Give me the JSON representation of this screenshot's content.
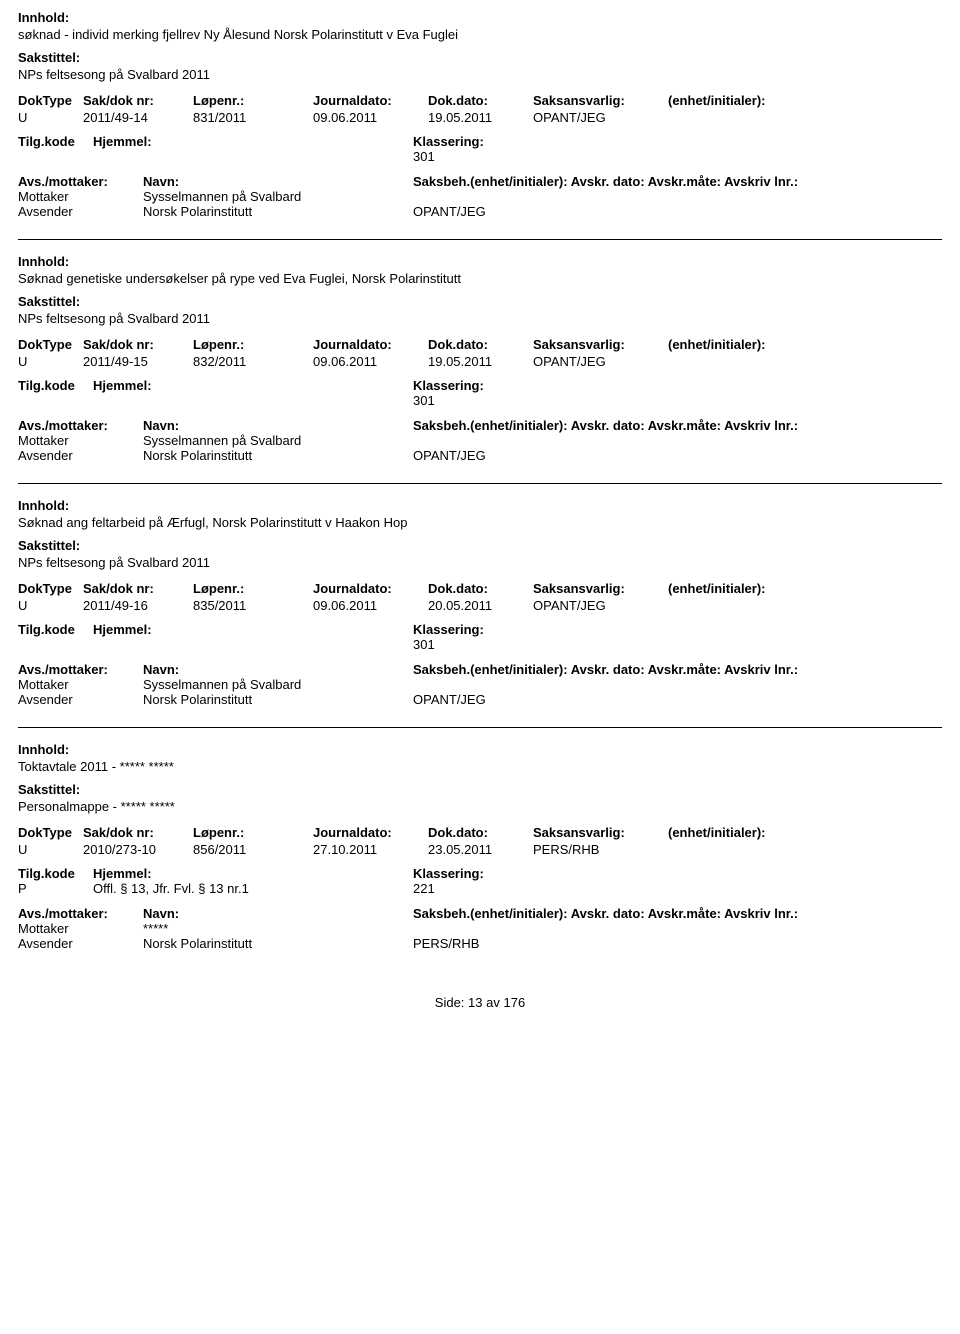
{
  "labels": {
    "innhold": "Innhold:",
    "sakstittel": "Sakstittel:",
    "doktype": "DokType",
    "sakdok": "Sak/dok nr:",
    "lopenr": "Løpenr.:",
    "journaldato": "Journaldato:",
    "dokdato": "Dok.dato:",
    "saksansvarlig": "Saksansvarlig:",
    "enhet": "(enhet/initialer):",
    "tilgkode": "Tilg.kode",
    "hjemmel": "Hjemmel:",
    "klassering": "Klassering:",
    "avsmottaker": "Avs./mottaker:",
    "navn": "Navn:",
    "saksbeh_line": "Saksbeh.(enhet/initialer): Avskr. dato:  Avskr.måte: Avskriv lnr.:"
  },
  "records": [
    {
      "innhold": "søknad - individ merking fjellrev Ny Ålesund Norsk Polarinstitutt v Eva Fuglei",
      "sakstittel": "NPs feltsesong på Svalbard  2011",
      "doktype": "U",
      "sakdok": "2011/49-14",
      "lopenr": "831/2011",
      "journaldato": "09.06.2011",
      "dokdato": "19.05.2011",
      "saksansvarlig": "OPANT/JEG",
      "tilgkode": "",
      "hjemmel": "",
      "klassering": "301",
      "parties": [
        {
          "role": "Mottaker",
          "navn": "Sysselmannen på Svalbard",
          "saksbeh": ""
        },
        {
          "role": "Avsender",
          "navn": "Norsk Polarinstitutt",
          "saksbeh": "OPANT/JEG"
        }
      ]
    },
    {
      "innhold": "Søknad genetiske undersøkelser på rype ved Eva Fuglei, Norsk Polarinstitutt",
      "sakstittel": "NPs feltsesong på Svalbard  2011",
      "doktype": "U",
      "sakdok": "2011/49-15",
      "lopenr": "832/2011",
      "journaldato": "09.06.2011",
      "dokdato": "19.05.2011",
      "saksansvarlig": "OPANT/JEG",
      "tilgkode": "",
      "hjemmel": "",
      "klassering": "301",
      "parties": [
        {
          "role": "Mottaker",
          "navn": "Sysselmannen på Svalbard",
          "saksbeh": ""
        },
        {
          "role": "Avsender",
          "navn": "Norsk Polarinstitutt",
          "saksbeh": "OPANT/JEG"
        }
      ]
    },
    {
      "innhold": "Søknad ang feltarbeid på Ærfugl, Norsk Polarinstitutt v Haakon Hop",
      "sakstittel": "NPs feltsesong på Svalbard  2011",
      "doktype": "U",
      "sakdok": "2011/49-16",
      "lopenr": "835/2011",
      "journaldato": "09.06.2011",
      "dokdato": "20.05.2011",
      "saksansvarlig": "OPANT/JEG",
      "tilgkode": "",
      "hjemmel": "",
      "klassering": "301",
      "parties": [
        {
          "role": "Mottaker",
          "navn": "Sysselmannen på Svalbard",
          "saksbeh": ""
        },
        {
          "role": "Avsender",
          "navn": "Norsk Polarinstitutt",
          "saksbeh": "OPANT/JEG"
        }
      ]
    },
    {
      "innhold": "Toktavtale 2011 - ***** *****",
      "sakstittel": "Personalmappe - ***** *****",
      "doktype": "U",
      "sakdok": "2010/273-10",
      "lopenr": "856/2011",
      "journaldato": "27.10.2011",
      "dokdato": "23.05.2011",
      "saksansvarlig": "PERS/RHB",
      "tilgkode": "P",
      "hjemmel": "Offl. § 13, Jfr. Fvl. § 13 nr.1",
      "klassering": "221",
      "parties": [
        {
          "role": "Mottaker",
          "navn": "*****",
          "saksbeh": ""
        },
        {
          "role": "Avsender",
          "navn": "Norsk Polarinstitutt",
          "saksbeh": "PERS/RHB"
        }
      ]
    }
  ],
  "footer": {
    "side_lbl": "Side:",
    "page": "13",
    "sep": "av",
    "total": "176"
  }
}
